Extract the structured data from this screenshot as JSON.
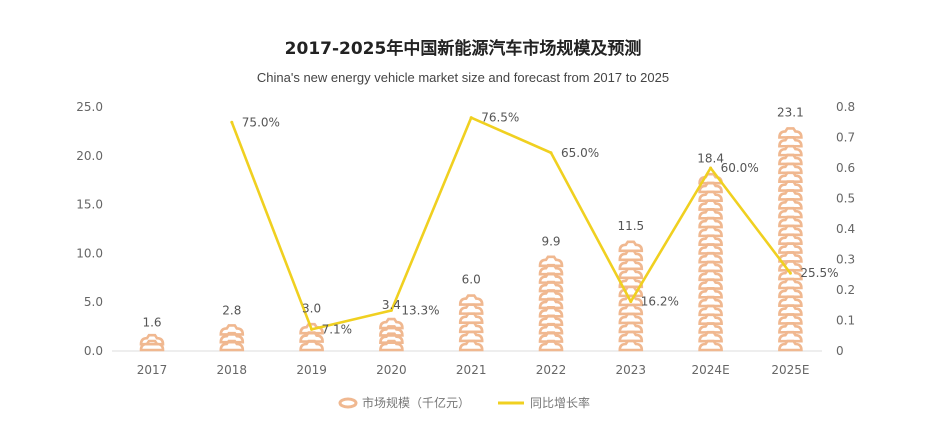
{
  "chart_data": {
    "type": "bar+line",
    "title": "2017-2025年中国新能源汽车市场规模及预测",
    "subtitle": "China's new energy vehicle market size and forecast from 2017 to 2025",
    "categories": [
      "2017",
      "2018",
      "2019",
      "2020",
      "2021",
      "2022",
      "2023",
      "2024E",
      "2025E"
    ],
    "series": [
      {
        "name": "市场规模（千亿元）",
        "type": "pictograph-bar",
        "axis": "left",
        "color": "#f0b890",
        "values": [
          1.6,
          2.8,
          3.0,
          3.4,
          6.0,
          9.9,
          11.5,
          18.4,
          23.1
        ],
        "labels": [
          "1.6",
          "2.8",
          "3.0",
          "3.4",
          "6.0",
          "9.9",
          "11.5",
          "18.4",
          "23.1"
        ]
      },
      {
        "name": "同比增长率",
        "type": "line",
        "axis": "right",
        "color": "#f0d020",
        "values": [
          null,
          0.75,
          0.071,
          0.133,
          0.765,
          0.65,
          0.162,
          0.6,
          0.255
        ],
        "labels": [
          "",
          "75.0%",
          "7.1%",
          "13.3%",
          "76.5%",
          "65.0%",
          "16.2%",
          "60.0%",
          "25.5%"
        ]
      }
    ],
    "left_axis": {
      "ylim": [
        0,
        25
      ],
      "ticks": [
        "0.0",
        "5.0",
        "10.0",
        "15.0",
        "20.0",
        "25.0"
      ]
    },
    "right_axis": {
      "ylim": [
        0,
        0.8
      ],
      "ticks": [
        "0",
        "0.1",
        "0.2",
        "0.3",
        "0.4",
        "0.5",
        "0.6",
        "0.7",
        "0.8"
      ]
    },
    "grid": false,
    "legend_position": "bottom"
  }
}
